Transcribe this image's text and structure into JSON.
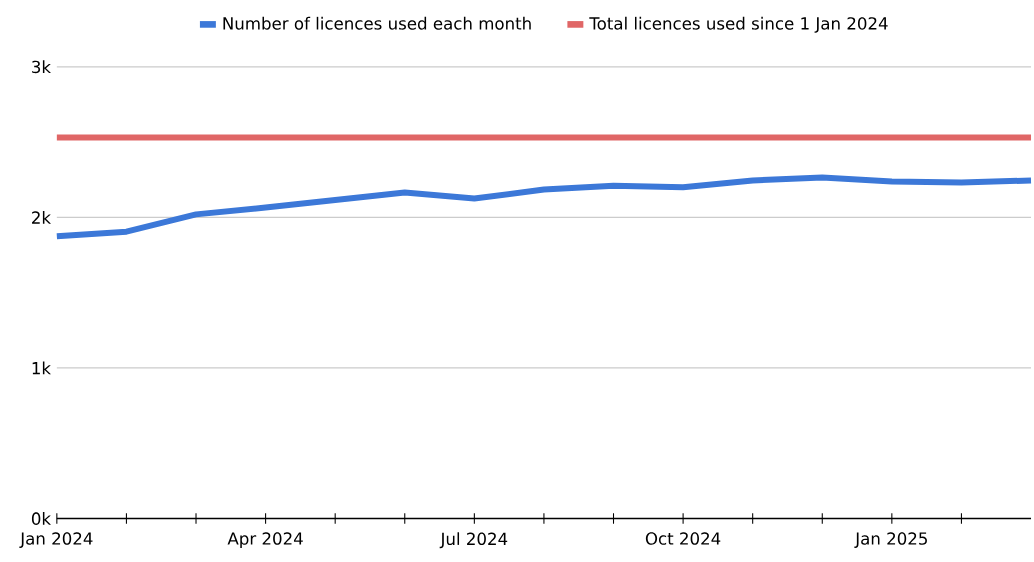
{
  "chart_data": {
    "type": "line",
    "x": [
      "2024-01",
      "2024-02",
      "2024-03",
      "2024-04",
      "2024-05",
      "2024-06",
      "2024-07",
      "2024-08",
      "2024-09",
      "2024-10",
      "2024-11",
      "2024-12",
      "2025-01",
      "2025-02",
      "2025-03"
    ],
    "series": [
      {
        "name": "Number of licences used each month",
        "color": "#3c78d8",
        "values": [
          1875,
          1905,
          2020,
          2065,
          2115,
          2165,
          2125,
          2185,
          2210,
          2200,
          2245,
          2265,
          2238,
          2232,
          2245
        ]
      },
      {
        "name": "Total licences used since 1 Jan 2024",
        "color": "#e06666",
        "values": [
          2530,
          2530,
          2530,
          2530,
          2530,
          2530,
          2530,
          2530,
          2530,
          2530,
          2530,
          2530,
          2530,
          2530,
          2530
        ]
      }
    ],
    "xlim": [
      "2024-01",
      "2025-03"
    ],
    "xticks": [
      {
        "value": "2024-01",
        "label": "Jan 2024"
      },
      {
        "value": "2024-02",
        "label": null
      },
      {
        "value": "2024-03",
        "label": null
      },
      {
        "value": "2024-04",
        "label": "Apr 2024"
      },
      {
        "value": "2024-05",
        "label": null
      },
      {
        "value": "2024-06",
        "label": null
      },
      {
        "value": "2024-07",
        "label": "Jul 2024"
      },
      {
        "value": "2024-08",
        "label": null
      },
      {
        "value": "2024-09",
        "label": null
      },
      {
        "value": "2024-10",
        "label": "Oct 2024"
      },
      {
        "value": "2024-11",
        "label": null
      },
      {
        "value": "2024-12",
        "label": null
      },
      {
        "value": "2025-01",
        "label": "Jan 2025"
      },
      {
        "value": "2025-02",
        "label": null
      }
    ],
    "ylim": [
      0,
      3000
    ],
    "yticks": [
      {
        "value": 0,
        "label": "0k"
      },
      {
        "value": 1000,
        "label": "1k"
      },
      {
        "value": 2000,
        "label": "2k"
      },
      {
        "value": 3000,
        "label": "3k"
      }
    ],
    "grid": "y",
    "legend": "top",
    "marker": "none",
    "line_style": "solid"
  }
}
